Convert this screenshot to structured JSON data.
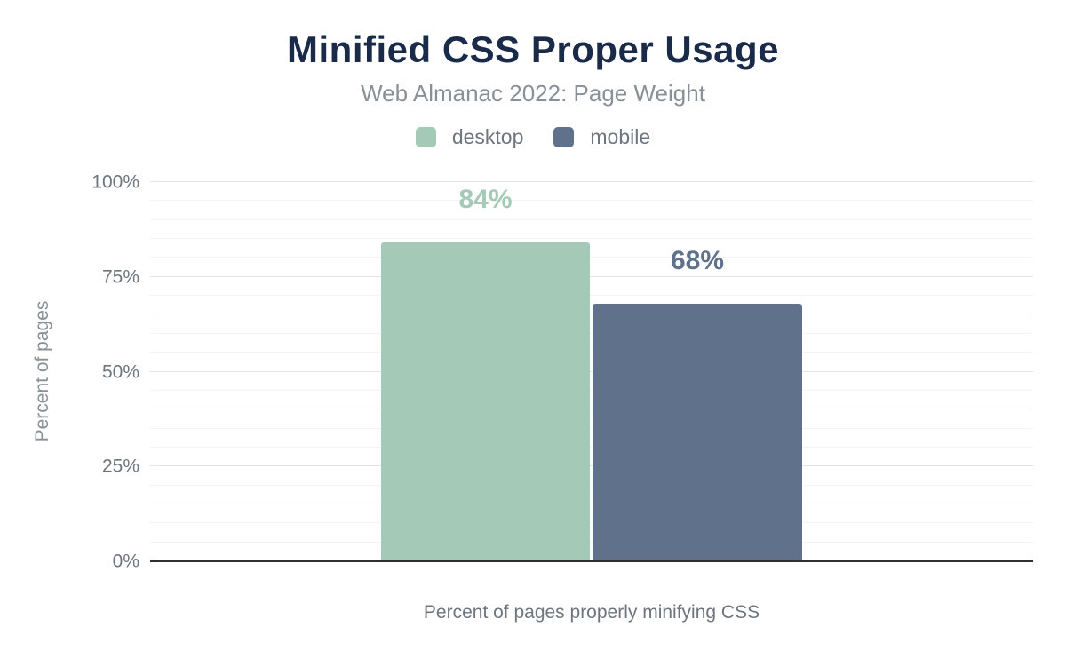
{
  "header": {
    "title": "Minified CSS Proper Usage",
    "subtitle": "Web Almanac 2022: Page Weight"
  },
  "legend": {
    "items": [
      {
        "label": "desktop",
        "color": "#a4c9b7"
      },
      {
        "label": "mobile",
        "color": "#60718b"
      }
    ]
  },
  "axes": {
    "y_title": "Percent of pages",
    "x_title": "Percent of pages properly minifying CSS"
  },
  "chart_data": {
    "type": "bar",
    "title": "Minified CSS Proper Usage",
    "subtitle": "Web Almanac 2022: Page Weight",
    "categories": [
      "Percent of pages properly minifying CSS"
    ],
    "series": [
      {
        "name": "desktop",
        "values": [
          84
        ],
        "label": "84%",
        "color": "#a4c9b7"
      },
      {
        "name": "mobile",
        "values": [
          68
        ],
        "label": "68%",
        "color": "#60718b"
      }
    ],
    "xlabel": "Percent of pages properly minifying CSS",
    "ylabel": "Percent of pages",
    "ylim": [
      0,
      100
    ],
    "yticks": [
      0,
      25,
      50,
      75,
      100
    ],
    "ytick_labels": [
      "0%",
      "25%",
      "50%",
      "75%",
      "100%"
    ],
    "minor_grid_step": 5,
    "major_grid_step": 25,
    "grid": "on",
    "legend_position": "top"
  },
  "colors": {
    "title": "#1a2b49",
    "subtitle": "#8a9097",
    "axis_text": "#6e757e",
    "baseline": "#2f2f2f",
    "grid_major": "#e4e4e4",
    "grid_minor": "#f4f4f4",
    "background": "#ffffff"
  }
}
